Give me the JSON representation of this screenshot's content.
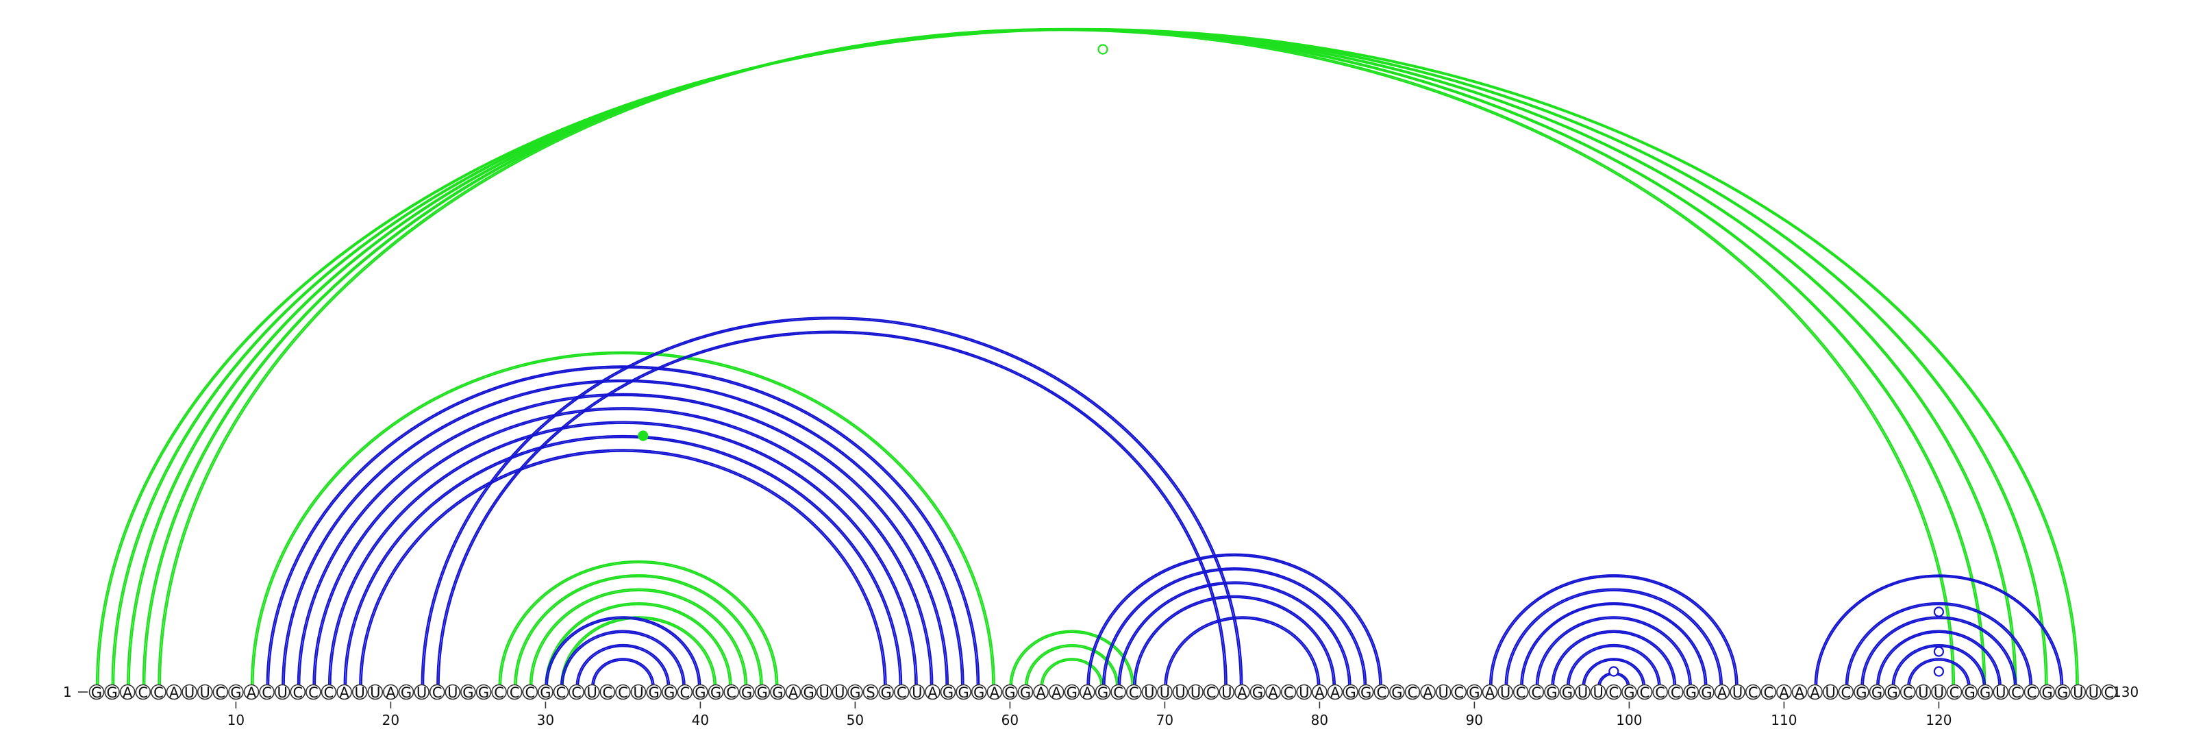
{
  "sequence": {
    "bases": "GGACCAUUCGACUCCCAUUAGUCUGGCCCGCCUCCUGGCGGCGGGAGUUGSGCUAGGGAGGAAGAGCCUUUUCUAGACUAAGGCGCAUCGAUCCGGUUCGCCCGGAUCCAAAUCGGGCUUCGGUCCGGUUC",
    "length": 130,
    "start_label": "1",
    "end_label": "130"
  },
  "ticks": [
    {
      "position": 10,
      "label": "10"
    },
    {
      "position": 20,
      "label": "20"
    },
    {
      "position": 30,
      "label": "30"
    },
    {
      "position": 40,
      "label": "40"
    },
    {
      "position": 50,
      "label": "50"
    },
    {
      "position": 60,
      "label": "60"
    },
    {
      "position": 70,
      "label": "70"
    },
    {
      "position": 80,
      "label": "80"
    },
    {
      "position": 90,
      "label": "90"
    },
    {
      "position": 100,
      "label": "100"
    },
    {
      "position": 110,
      "label": "110"
    },
    {
      "position": 120,
      "label": "120"
    }
  ],
  "colors": {
    "structure_a": "#1ee01e",
    "structure_b": "#1414d2",
    "marker_a": "#1ee01e",
    "marker_b": "#1414d2"
  },
  "pairs": {
    "green_long_helix": [
      [
        1,
        129
      ],
      [
        2,
        127
      ],
      [
        3,
        125
      ],
      [
        4,
        123
      ],
      [
        5,
        121
      ]
    ],
    "green_outer": [
      [
        11,
        59
      ]
    ],
    "green_hairpin": [
      [
        27,
        45
      ],
      [
        28,
        44
      ],
      [
        29,
        43
      ],
      [
        30,
        42
      ],
      [
        31,
        41
      ]
    ],
    "green_small": [
      [
        60,
        68
      ],
      [
        61,
        67
      ],
      [
        62,
        66
      ]
    ],
    "blue_helix_1": [
      [
        12,
        58
      ],
      [
        13,
        57
      ],
      [
        14,
        56
      ],
      [
        15,
        55
      ],
      [
        16,
        54
      ],
      [
        17,
        53
      ],
      [
        18,
        52
      ]
    ],
    "blue_pseudoknot": [
      [
        22,
        75
      ],
      [
        23,
        74
      ]
    ],
    "blue_hairpin_1": [
      [
        30,
        40
      ],
      [
        31,
        39
      ],
      [
        32,
        38
      ],
      [
        33,
        37
      ]
    ],
    "blue_helix_2": [
      [
        65,
        84
      ],
      [
        66,
        83
      ],
      [
        67,
        82
      ],
      [
        68,
        81
      ],
      [
        70,
        80
      ]
    ],
    "blue_helix_3": [
      [
        91,
        107
      ],
      [
        92,
        106
      ],
      [
        93,
        105
      ],
      [
        94,
        104
      ],
      [
        95,
        103
      ],
      [
        96,
        102
      ],
      [
        97,
        101
      ],
      [
        98,
        100
      ]
    ],
    "blue_helix_4": [
      [
        112,
        128
      ],
      [
        114,
        126
      ],
      [
        115,
        125
      ],
      [
        116,
        124
      ],
      [
        117,
        123
      ],
      [
        118,
        122
      ]
    ]
  },
  "markers": [
    {
      "color": "green",
      "filled": false,
      "i": 66
    },
    {
      "color": "green",
      "filled": true,
      "i": 36
    },
    {
      "color": "blue",
      "filled": false,
      "i": 99
    },
    {
      "color": "blue",
      "filled": false,
      "i": 120
    },
    {
      "color": "blue",
      "filled": false,
      "i": 120
    },
    {
      "color": "blue",
      "filled": false,
      "i": 120
    }
  ]
}
